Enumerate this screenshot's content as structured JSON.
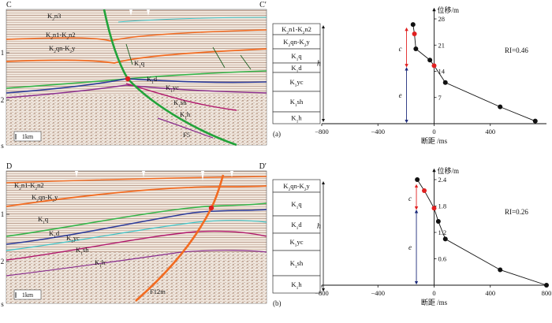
{
  "panels": [
    {
      "id": "a",
      "caption": "(a)",
      "section": {
        "left_label": "C",
        "right_label": "C′",
        "depth_ticks": [
          "1",
          "2",
          "s"
        ],
        "scale_label": "1km",
        "fault_label": "F5",
        "horizon_labels": [
          "K2n3",
          "K2n1-K2n2",
          "K2qn-K2y",
          "K1q",
          "K1d",
          "K1yc",
          "K1sh",
          "K1h"
        ]
      },
      "strat_column": [
        "K2n1-K2n2",
        "K2qn-K2y",
        "K1q",
        "K1d",
        "K1yc",
        "K1sh",
        "K1h"
      ],
      "side_label": "h",
      "dim_labels": [
        "c",
        "e"
      ],
      "ri_text": "RI=0.46"
    },
    {
      "id": "b",
      "caption": "(b)",
      "section": {
        "left_label": "D",
        "right_label": "D′",
        "depth_ticks": [
          "1",
          "2",
          "s"
        ],
        "scale_label": "1km",
        "fault_label": "F12m",
        "horizon_labels": [
          "K2n1-K2n2",
          "K2qn-K2y",
          "K1q",
          "K1d",
          "K1yc",
          "K1sh",
          "K1h"
        ]
      },
      "strat_column": [
        "K2qn-K2y",
        "K1q",
        "K1d",
        "K1yc",
        "K1sh",
        "K1h"
      ],
      "side_label": "h",
      "dim_labels": [
        "c",
        "e"
      ],
      "ri_text": "RI=0.26"
    }
  ],
  "chart_data": [
    {
      "type": "scatter",
      "ylabel": "位移/m",
      "xlabel": "断距 /ms",
      "x_ticks": [
        "−800",
        "−400",
        "0",
        "400"
      ],
      "y_ticks": [
        "7",
        "14",
        "21",
        "28"
      ],
      "xlim": [
        -800,
        800
      ],
      "ylim": [
        0,
        28
      ],
      "points": [
        {
          "x": -150,
          "y": 26.5,
          "highlight": false
        },
        {
          "x": -140,
          "y": 24.0,
          "highlight": true
        },
        {
          "x": -130,
          "y": 20.0,
          "highlight": false
        },
        {
          "x": -30,
          "y": 17.0,
          "highlight": false
        },
        {
          "x": 0,
          "y": 15.5,
          "highlight": true
        },
        {
          "x": 80,
          "y": 11.0,
          "highlight": false
        },
        {
          "x": 470,
          "y": 4.5,
          "highlight": false
        },
        {
          "x": 720,
          "y": 0.7,
          "highlight": false
        }
      ],
      "annotation": "RI=0.46"
    },
    {
      "type": "scatter",
      "ylabel": "位移/m",
      "xlabel": "断距 /ms",
      "x_ticks": [
        "−800",
        "−400",
        "0",
        "400",
        "800"
      ],
      "y_ticks": [
        "0.6",
        "1.2",
        "1.8",
        "2.4"
      ],
      "xlim": [
        -800,
        800
      ],
      "ylim": [
        0,
        2.4
      ],
      "points": [
        {
          "x": -120,
          "y": 2.4,
          "highlight": false
        },
        {
          "x": -70,
          "y": 2.15,
          "highlight": true
        },
        {
          "x": 0,
          "y": 1.75,
          "highlight": true
        },
        {
          "x": 30,
          "y": 1.45,
          "highlight": false
        },
        {
          "x": 80,
          "y": 1.05,
          "highlight": false
        },
        {
          "x": 470,
          "y": 0.35,
          "highlight": false
        },
        {
          "x": 800,
          "y": 0.0,
          "highlight": false
        }
      ],
      "annotation": "RI=0.26"
    }
  ],
  "colors": {
    "seismic_bg": "#e8dcd2",
    "fault_a": "#22a33a",
    "fault_b": "#f26b21",
    "orange": "#f26b21",
    "green": "#35b54a",
    "blue": "#2b3a9a",
    "purple": "#8a2d8f",
    "magenta": "#b1186d",
    "cyan": "#3ec5c9",
    "red": "#e02020",
    "navy": "#1c2a7a"
  }
}
